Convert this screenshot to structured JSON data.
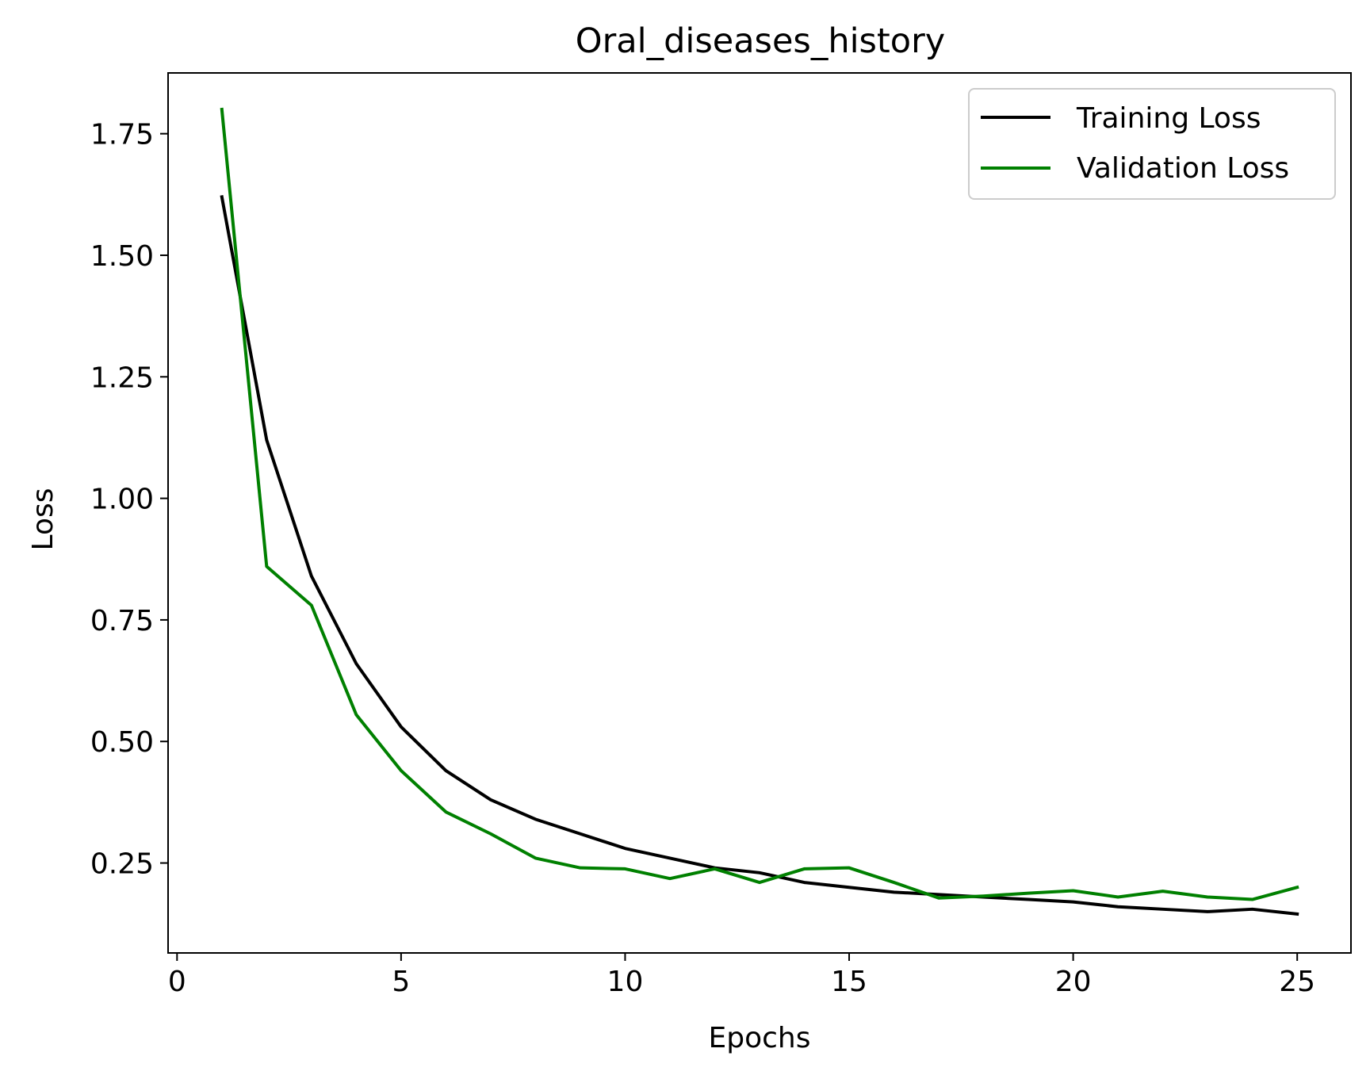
{
  "chart_data": {
    "type": "line",
    "title": "Oral_diseases_history",
    "xlabel": "Epochs",
    "ylabel": "Loss",
    "xlim": [
      -0.2,
      26.2
    ],
    "ylim": [
      0.065,
      1.875
    ],
    "xticks": [
      0,
      5,
      10,
      15,
      20,
      25
    ],
    "xtick_labels": [
      "0",
      "5",
      "10",
      "15",
      "20",
      "25"
    ],
    "yticks": [
      0.25,
      0.5,
      0.75,
      1.0,
      1.25,
      1.5,
      1.75
    ],
    "ytick_labels": [
      "0.25",
      "0.50",
      "0.75",
      "1.00",
      "1.25",
      "1.50",
      "1.75"
    ],
    "grid": false,
    "legend_position": "top-right",
    "x": [
      1,
      2,
      3,
      4,
      5,
      6,
      7,
      8,
      9,
      10,
      11,
      12,
      13,
      14,
      15,
      16,
      17,
      18,
      19,
      20,
      21,
      22,
      23,
      24,
      25
    ],
    "series": [
      {
        "name": "Training Loss",
        "color": "#000000",
        "values": [
          1.62,
          1.12,
          0.84,
          0.66,
          0.53,
          0.44,
          0.38,
          0.34,
          0.31,
          0.28,
          0.26,
          0.24,
          0.23,
          0.21,
          0.2,
          0.19,
          0.185,
          0.18,
          0.175,
          0.17,
          0.16,
          0.155,
          0.15,
          0.155,
          0.145
        ]
      },
      {
        "name": "Validation Loss",
        "color": "#008000",
        "values": [
          1.8,
          0.86,
          0.78,
          0.555,
          0.44,
          0.355,
          0.31,
          0.26,
          0.24,
          0.238,
          0.218,
          0.238,
          0.21,
          0.238,
          0.24,
          0.21,
          0.178,
          0.182,
          0.188,
          0.193,
          0.18,
          0.192,
          0.18,
          0.175,
          0.2
        ]
      }
    ]
  }
}
